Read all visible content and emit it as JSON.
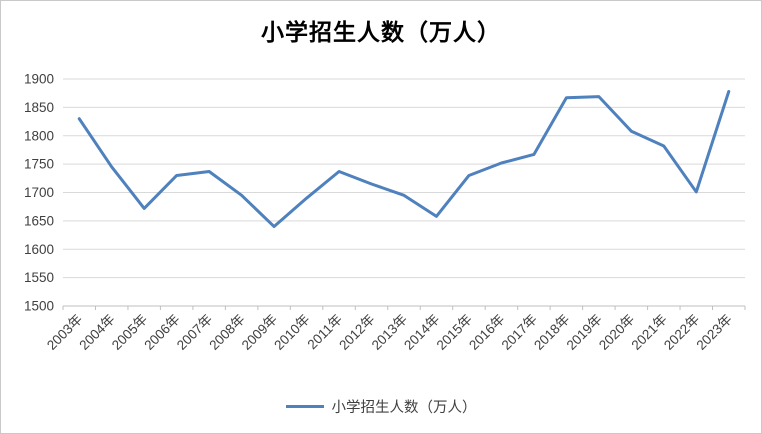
{
  "chart": {
    "title": "小学招生人数（万人）",
    "legend_label": "小学招生人数（万人）",
    "line_color": "#4e81bd",
    "grid_color": "#d9d9d9",
    "axis_color": "#bfbfbf",
    "tick_color": "#404040"
  },
  "chart_data": {
    "type": "line",
    "title": "小学招生人数（万人）",
    "categories": [
      "2003年",
      "2004年",
      "2005年",
      "2006年",
      "2007年",
      "2008年",
      "2009年",
      "2010年",
      "2011年",
      "2012年",
      "2013年",
      "2014年",
      "2015年",
      "2016年",
      "2017年",
      "2018年",
      "2019年",
      "2020年",
      "2021年",
      "2022年",
      "2023年"
    ],
    "values": [
      1830,
      1745,
      1672,
      1730,
      1737,
      1695,
      1640,
      1690,
      1737,
      1715,
      1695,
      1658,
      1730,
      1752,
      1767,
      1867,
      1869,
      1808,
      1782,
      1701,
      1878
    ],
    "xlabel": "",
    "ylabel": "",
    "ylim": [
      1500,
      1900
    ],
    "yticks": [
      1500,
      1550,
      1600,
      1650,
      1700,
      1750,
      1800,
      1850,
      1900
    ],
    "ytick_step": 50,
    "grid": true,
    "legend": [
      "小学招生人数（万人）"
    ],
    "legend_position": "bottom"
  }
}
